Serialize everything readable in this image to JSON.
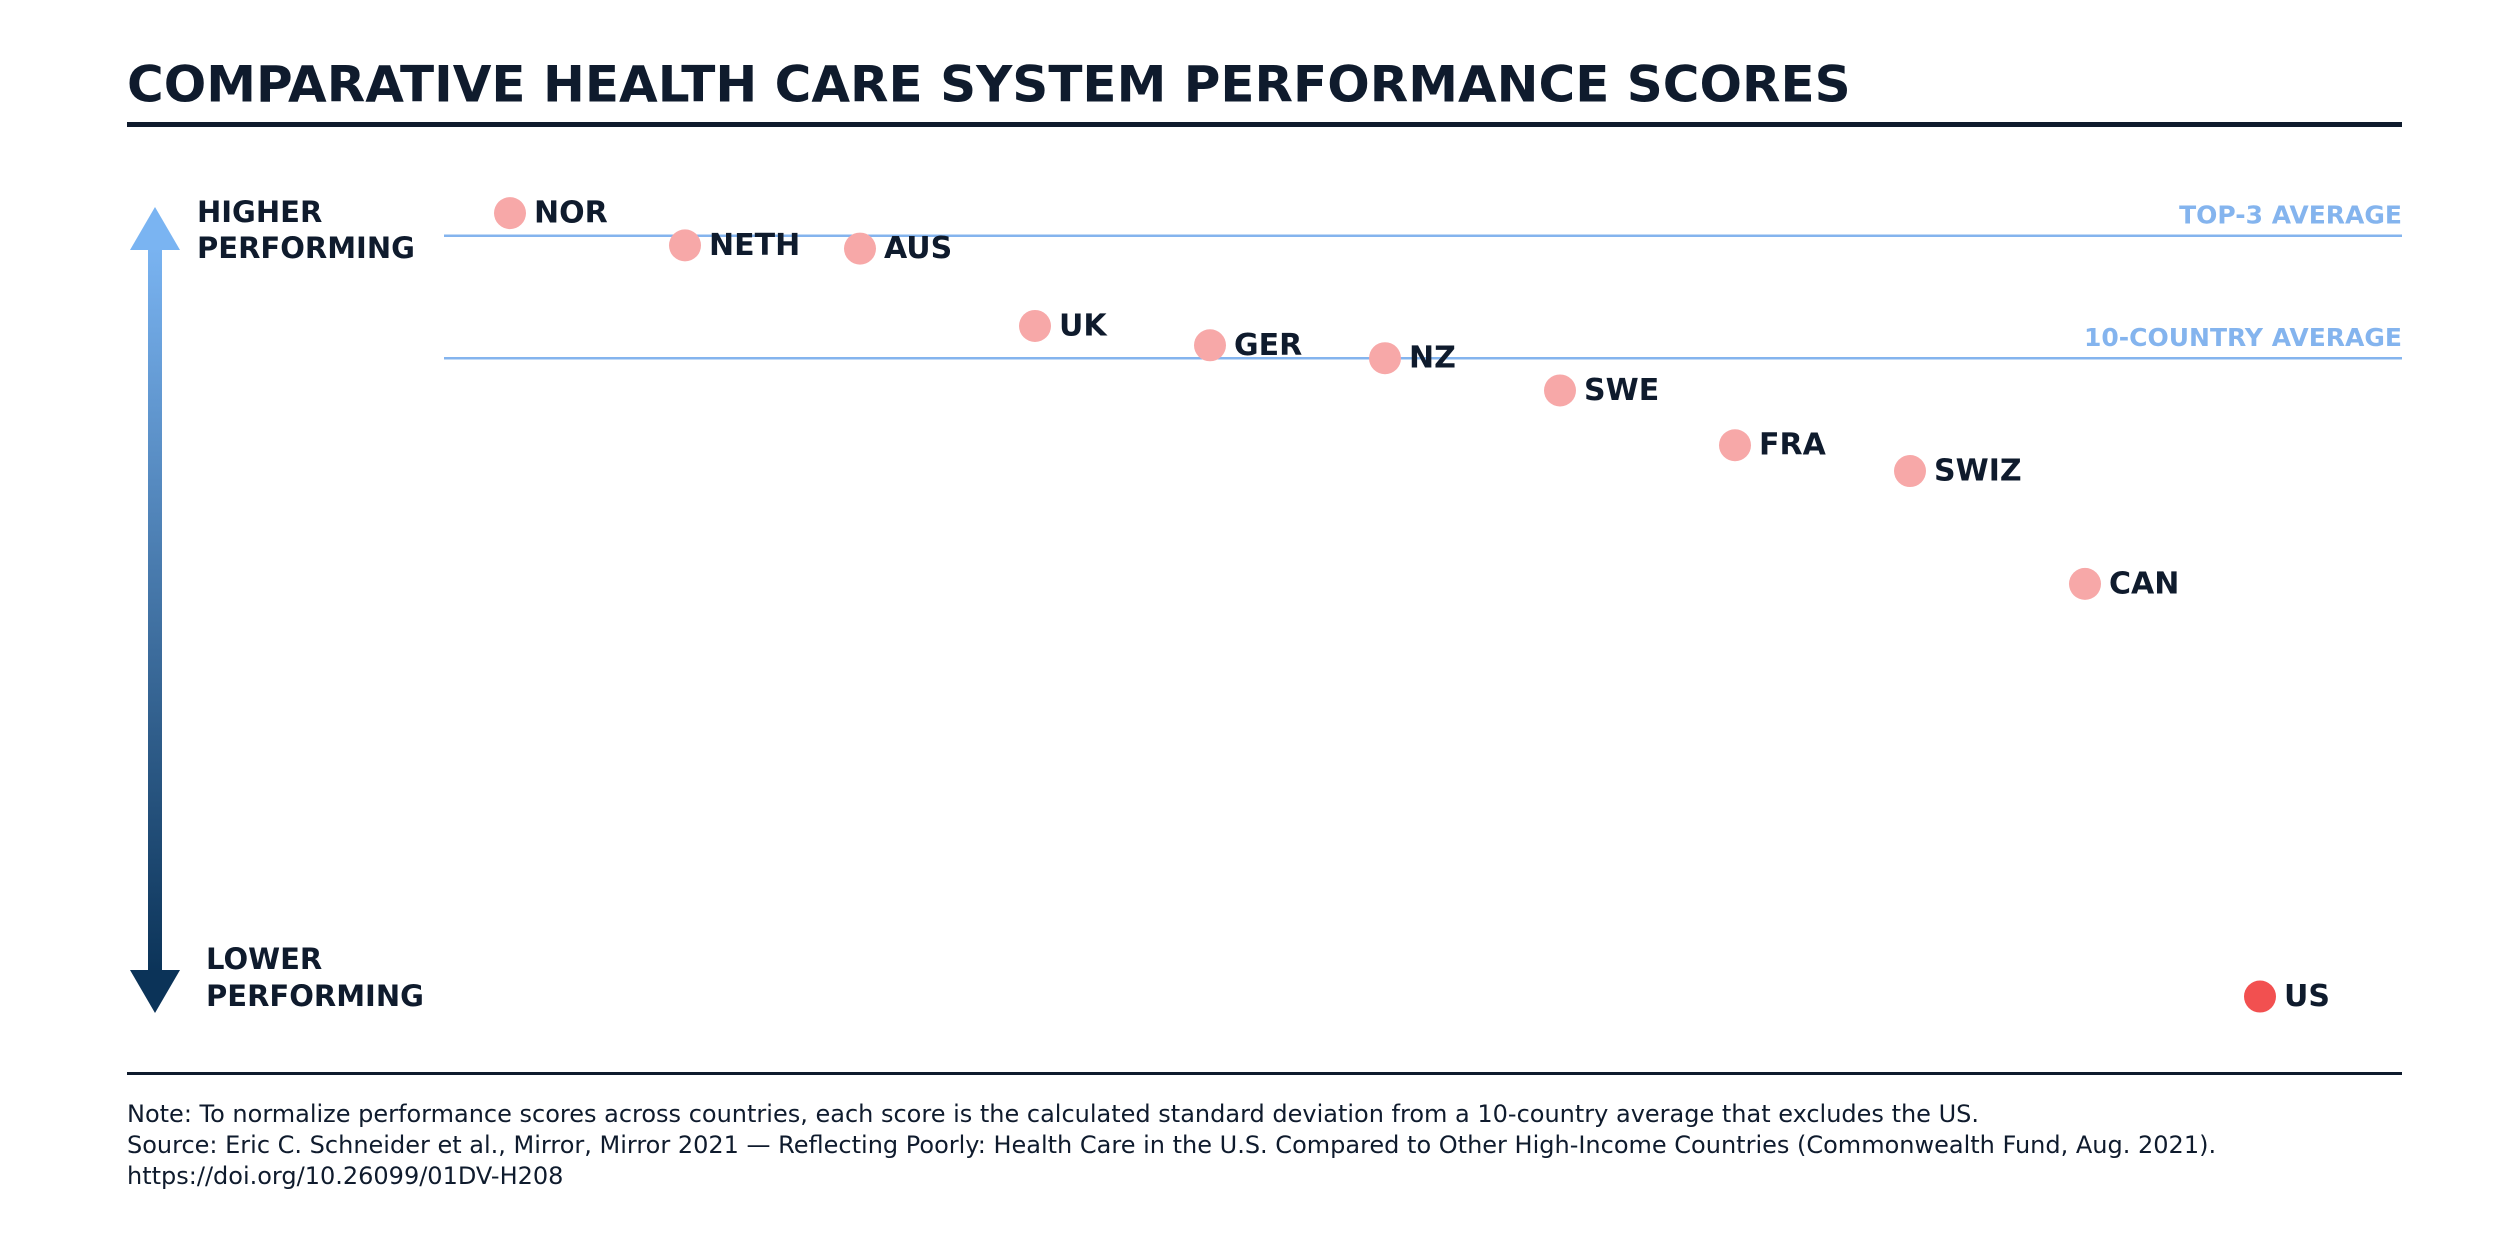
{
  "chart_data": {
    "type": "dot",
    "title": "COMPARATIVE HEALTH CARE SYSTEM PERFORMANCE SCORES",
    "axis_high": [
      "HIGHER",
      "PERFORMING"
    ],
    "axis_low": [
      "LOWER",
      "PERFORMING"
    ],
    "categories": [
      "NOR",
      "NETH",
      "AUS",
      "UK",
      "GER",
      "NZ",
      "SWE",
      "FRA",
      "SWIZ",
      "CAN",
      "US"
    ],
    "values": [
      0.45,
      0.35,
      0.34,
      0.1,
      0.04,
      0.0,
      -0.1,
      -0.27,
      -0.35,
      -0.7,
      -1.98
    ],
    "colors": [
      "#f7a8a8",
      "#f7a8a8",
      "#f7a8a8",
      "#f7a8a8",
      "#f7a8a8",
      "#f7a8a8",
      "#f7a8a8",
      "#f7a8a8",
      "#f7a8a8",
      "#f7a8a8",
      "#f25050"
    ],
    "ylim": [
      -2,
      0.5
    ],
    "reference_lines": [
      {
        "label": "TOP-3 AVERAGE",
        "value": 0.38
      },
      {
        "label": "10-COUNTRY AVERAGE",
        "value": 0
      }
    ],
    "reference_color": "#84b4ee",
    "notes": [
      "Note: To normalize performance scores across countries, each score is the calculated standard deviation from a 10-country average that excludes the US.",
      "Source: Eric C. Schneider et al., Mirror, Mirror 2021 — Reflecting Poorly: Health Care in the U.S. Compared to Other High-Income Countries (Commonwealth Fund, Aug. 2021).",
      "https://doi.org/10.26099/01DV-H208"
    ]
  }
}
